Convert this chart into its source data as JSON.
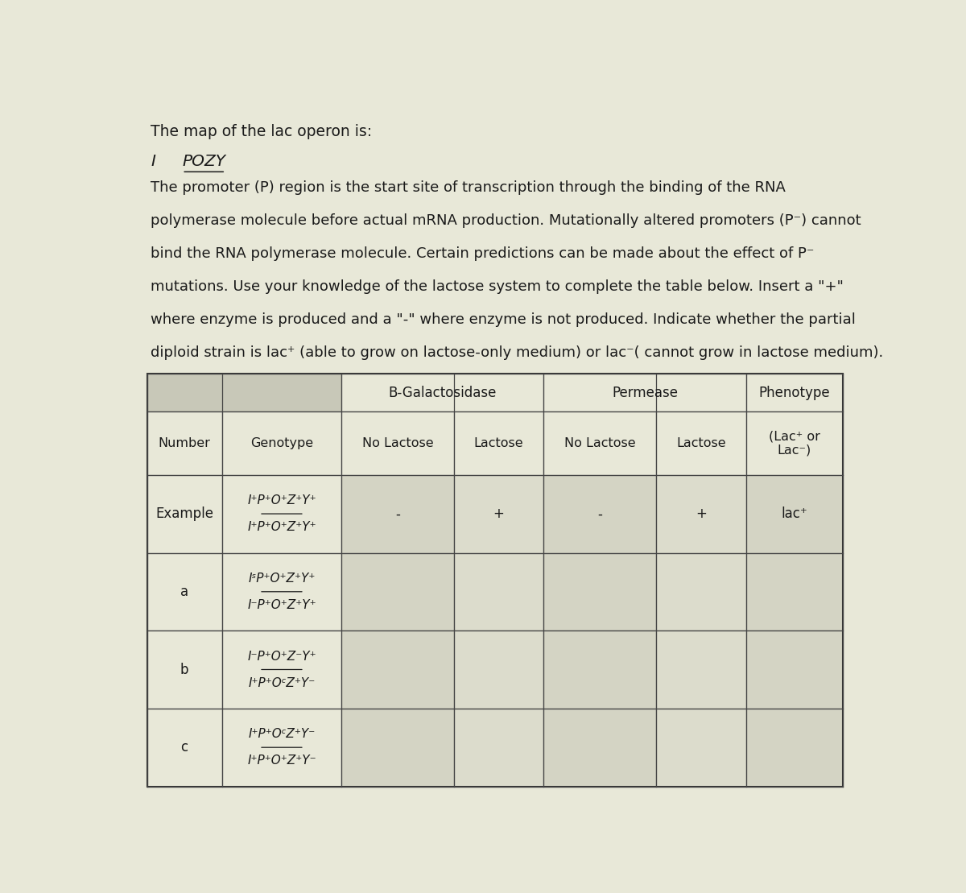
{
  "background_color": "#e8e8d8",
  "title_text": "The map of the lac operon is:",
  "paragraph_lines": [
    "The promoter (P) region is the start site of transcription through the binding of the RNA",
    "polymerase molecule before actual mRNA production. Mutationally altered promoters (P⁻) cannot",
    "bind the RNA polymerase molecule. Certain predictions can be made about the effect of P⁻",
    "mutations. Use your knowledge of the lactose system to complete the table below. Insert a \"+\"",
    "where enzyme is produced and a \"-\" where enzyme is not produced. Indicate whether the partial",
    "diploid strain is lac⁺ (able to grow on lactose-only medium) or lac⁻( cannot grow in lactose medium)."
  ],
  "rows": [
    {
      "number": "Example",
      "genotype_top": "I⁺P⁺O⁺Z⁺Y⁺",
      "genotype_bottom": "I⁺P⁺O⁺Z⁺Y⁺",
      "no_lac_bgal": "-",
      "lac_bgal": "+",
      "no_lac_perm": "-",
      "lac_perm": "+",
      "phenotype": "lac⁺"
    },
    {
      "number": "a",
      "genotype_top": "IˢP⁺O⁺Z⁺Y⁺",
      "genotype_bottom": "I⁻P⁺O⁺Z⁺Y⁺",
      "no_lac_bgal": "",
      "lac_bgal": "",
      "no_lac_perm": "",
      "lac_perm": "",
      "phenotype": ""
    },
    {
      "number": "b",
      "genotype_top": "I⁻P⁺O⁺Z⁻Y⁺",
      "genotype_bottom": "I⁺P⁺OᶜZ⁺Y⁻",
      "no_lac_bgal": "",
      "lac_bgal": "",
      "no_lac_perm": "",
      "lac_perm": "",
      "phenotype": ""
    },
    {
      "number": "c",
      "genotype_top": "I⁺P⁺OᶜZ⁺Y⁻",
      "genotype_bottom": "I⁺P⁺O⁺Z⁺Y⁻",
      "no_lac_bgal": "",
      "lac_bgal": "",
      "no_lac_perm": "",
      "lac_perm": "",
      "phenotype": ""
    }
  ],
  "font_size_text": 13.5,
  "font_size_table": 12,
  "font_size_genotype": 11
}
